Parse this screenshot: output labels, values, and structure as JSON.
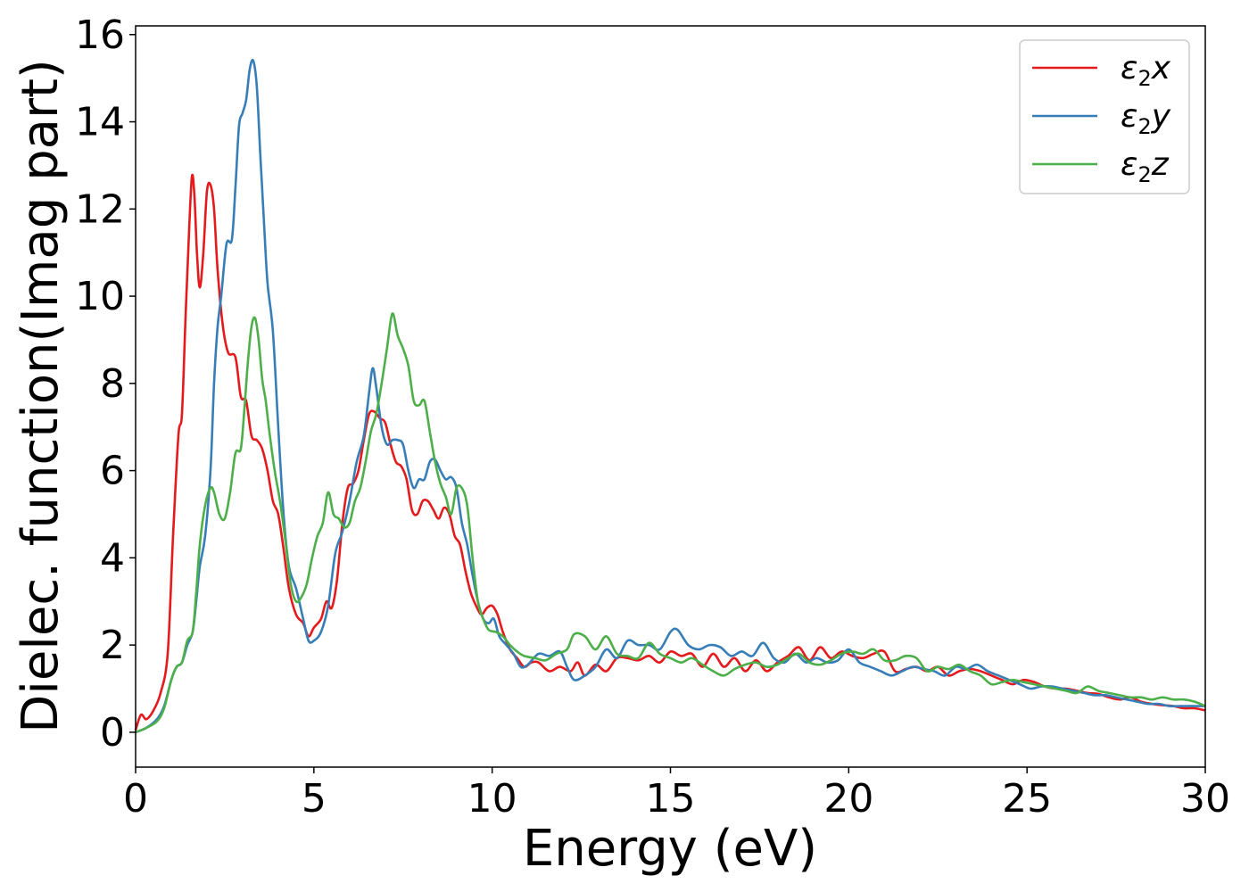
{
  "chart_data": {
    "type": "line",
    "title": "",
    "xlabel": "Energy (eV)",
    "ylabel": "Dielec. function(Imag part)",
    "xlim": [
      0,
      30
    ],
    "ylim": [
      -0.8,
      16.2
    ],
    "xticks": [
      0,
      5,
      10,
      15,
      20,
      25,
      30
    ],
    "yticks": [
      0,
      2,
      4,
      6,
      8,
      10,
      12,
      14,
      16
    ],
    "grid": false,
    "legend_position": "top-right",
    "series": [
      {
        "name_symbol": "ε",
        "name_sub": "2",
        "name_suffix": "x",
        "color": "#e41a1c",
        "x": [
          0,
          0.15,
          0.3,
          0.5,
          0.7,
          0.9,
          1.05,
          1.2,
          1.3,
          1.4,
          1.5,
          1.58,
          1.65,
          1.72,
          1.8,
          1.9,
          2.0,
          2.1,
          2.2,
          2.3,
          2.45,
          2.6,
          2.8,
          2.95,
          3.1,
          3.25,
          3.4,
          3.55,
          3.7,
          3.85,
          4.0,
          4.15,
          4.3,
          4.5,
          4.7,
          4.85,
          5.0,
          5.2,
          5.35,
          5.5,
          5.65,
          5.8,
          5.95,
          6.1,
          6.25,
          6.4,
          6.55,
          6.7,
          6.85,
          7.0,
          7.15,
          7.3,
          7.45,
          7.6,
          7.75,
          7.9,
          8.05,
          8.2,
          8.35,
          8.5,
          8.65,
          8.8,
          8.95,
          9.1,
          9.25,
          9.4,
          9.55,
          9.7,
          9.85,
          10.0,
          10.15,
          10.3,
          10.5,
          10.7,
          10.9,
          11.1,
          11.3,
          11.6,
          11.9,
          12.2,
          12.4,
          12.6,
          12.9,
          13.2,
          13.5,
          13.8,
          14.1,
          14.4,
          14.7,
          15.0,
          15.3,
          15.6,
          15.9,
          16.2,
          16.5,
          16.8,
          17.1,
          17.4,
          17.7,
          18.0,
          18.3,
          18.6,
          18.9,
          19.2,
          19.5,
          19.8,
          20.1,
          20.4,
          20.7,
          21.0,
          21.3,
          21.6,
          21.9,
          22.2,
          22.5,
          22.8,
          23.1,
          23.4,
          23.7,
          24.0,
          24.3,
          24.6,
          24.9,
          25.2,
          25.5,
          25.8,
          26.1,
          26.4,
          26.7,
          27.0,
          27.3,
          27.6,
          27.9,
          28.2,
          28.5,
          28.8,
          29.1,
          29.4,
          29.7,
          30.0
        ],
        "y": [
          0.05,
          0.4,
          0.3,
          0.5,
          0.9,
          1.8,
          4.5,
          6.8,
          7.3,
          9.5,
          11.5,
          12.75,
          12.3,
          11.0,
          10.2,
          11.0,
          12.4,
          12.55,
          12.0,
          10.6,
          9.3,
          8.7,
          8.6,
          7.7,
          7.6,
          6.8,
          6.7,
          6.5,
          6.0,
          5.3,
          5.0,
          4.2,
          3.3,
          2.7,
          2.5,
          2.2,
          2.4,
          2.6,
          3.0,
          2.85,
          3.5,
          4.8,
          5.6,
          5.7,
          6.0,
          6.7,
          7.3,
          7.35,
          7.2,
          7.1,
          6.6,
          6.2,
          6.1,
          5.8,
          5.1,
          5.0,
          5.3,
          5.3,
          5.1,
          4.9,
          5.15,
          5.0,
          4.5,
          4.3,
          3.7,
          3.2,
          2.9,
          2.7,
          2.85,
          2.9,
          2.7,
          2.3,
          1.9,
          1.7,
          1.5,
          1.6,
          1.6,
          1.4,
          1.5,
          1.4,
          1.6,
          1.3,
          1.55,
          1.4,
          1.7,
          1.7,
          1.65,
          1.75,
          1.6,
          1.85,
          1.75,
          1.8,
          1.5,
          1.8,
          1.5,
          1.7,
          1.4,
          1.65,
          1.4,
          1.6,
          1.75,
          1.95,
          1.65,
          1.95,
          1.7,
          1.85,
          1.75,
          1.7,
          1.8,
          1.85,
          1.4,
          1.45,
          1.5,
          1.4,
          1.5,
          1.3,
          1.4,
          1.45,
          1.4,
          1.3,
          1.2,
          1.1,
          1.2,
          1.15,
          1.05,
          1.0,
          1.0,
          0.95,
          0.9,
          0.88,
          0.8,
          0.75,
          0.8,
          0.7,
          0.65,
          0.62,
          0.6,
          0.55,
          0.55,
          0.5
        ]
      },
      {
        "name_symbol": "ε",
        "name_sub": "2",
        "name_suffix": "y",
        "color": "#377eb8",
        "x": [
          0,
          0.3,
          0.6,
          0.8,
          1.0,
          1.15,
          1.3,
          1.45,
          1.6,
          1.7,
          1.8,
          1.95,
          2.1,
          2.2,
          2.3,
          2.4,
          2.55,
          2.7,
          2.8,
          2.9,
          3.0,
          3.1,
          3.2,
          3.3,
          3.4,
          3.5,
          3.6,
          3.7,
          3.85,
          4.0,
          4.15,
          4.3,
          4.5,
          4.7,
          4.85,
          5.0,
          5.2,
          5.4,
          5.6,
          5.8,
          6.0,
          6.2,
          6.4,
          6.55,
          6.65,
          6.75,
          6.9,
          7.05,
          7.2,
          7.35,
          7.5,
          7.65,
          7.8,
          7.95,
          8.1,
          8.25,
          8.4,
          8.55,
          8.7,
          8.85,
          9.0,
          9.15,
          9.3,
          9.45,
          9.6,
          9.75,
          9.9,
          10.05,
          10.2,
          10.4,
          10.6,
          10.8,
          11.0,
          11.3,
          11.6,
          11.9,
          12.1,
          12.3,
          12.6,
          12.9,
          13.2,
          13.5,
          13.8,
          14.1,
          14.4,
          14.7,
          15.0,
          15.2,
          15.5,
          15.8,
          16.1,
          16.4,
          16.7,
          17.0,
          17.3,
          17.6,
          17.9,
          18.2,
          18.5,
          18.8,
          19.1,
          19.4,
          19.7,
          20.0,
          20.3,
          20.6,
          20.9,
          21.2,
          21.5,
          21.8,
          22.1,
          22.4,
          22.7,
          23.0,
          23.3,
          23.6,
          23.9,
          24.2,
          24.5,
          24.8,
          25.1,
          25.4,
          25.7,
          26.0,
          26.3,
          26.6,
          26.9,
          27.2,
          27.5,
          27.8,
          28.1,
          28.4,
          28.7,
          29.0,
          29.3,
          29.6,
          30.0
        ],
        "y": [
          0.0,
          0.1,
          0.3,
          0.6,
          1.2,
          1.5,
          1.6,
          2.0,
          2.3,
          3.0,
          3.8,
          4.5,
          6.0,
          8.0,
          9.3,
          10.0,
          11.2,
          11.3,
          12.5,
          13.9,
          14.2,
          14.5,
          15.2,
          15.4,
          14.8,
          13.2,
          11.7,
          10.3,
          9.2,
          7.0,
          5.0,
          3.8,
          3.3,
          2.6,
          2.1,
          2.1,
          2.3,
          2.9,
          4.1,
          4.6,
          5.3,
          6.2,
          6.8,
          7.8,
          8.35,
          7.9,
          7.0,
          6.6,
          6.7,
          6.7,
          6.6,
          6.0,
          5.6,
          5.8,
          5.8,
          6.2,
          6.25,
          6.0,
          5.8,
          5.85,
          5.6,
          4.8,
          4.3,
          3.6,
          3.0,
          2.6,
          2.5,
          2.6,
          2.2,
          2.0,
          1.8,
          1.5,
          1.55,
          1.8,
          1.75,
          1.85,
          1.5,
          1.2,
          1.3,
          1.5,
          1.9,
          1.7,
          2.1,
          2.0,
          2.0,
          1.9,
          2.3,
          2.35,
          2.0,
          1.9,
          2.0,
          1.95,
          1.75,
          1.85,
          1.75,
          2.05,
          1.7,
          1.6,
          1.8,
          1.6,
          1.7,
          1.6,
          1.65,
          1.9,
          1.6,
          1.5,
          1.4,
          1.3,
          1.4,
          1.5,
          1.45,
          1.4,
          1.3,
          1.5,
          1.45,
          1.55,
          1.4,
          1.3,
          1.2,
          1.1,
          1.0,
          1.05,
          1.05,
          1.0,
          0.95,
          0.9,
          0.85,
          0.85,
          0.8,
          0.75,
          0.7,
          0.65,
          0.65,
          0.6,
          0.6,
          0.6,
          0.6
        ]
      },
      {
        "name_symbol": "ε",
        "name_sub": "2",
        "name_suffix": "z",
        "color": "#4daf4a",
        "x": [
          0,
          0.3,
          0.6,
          0.8,
          1.0,
          1.15,
          1.3,
          1.45,
          1.6,
          1.7,
          1.8,
          1.95,
          2.1,
          2.2,
          2.35,
          2.5,
          2.65,
          2.8,
          2.95,
          3.05,
          3.15,
          3.25,
          3.35,
          3.45,
          3.55,
          3.65,
          3.75,
          3.9,
          4.05,
          4.2,
          4.35,
          4.5,
          4.65,
          4.8,
          4.95,
          5.1,
          5.25,
          5.4,
          5.55,
          5.7,
          5.85,
          6.0,
          6.15,
          6.3,
          6.45,
          6.6,
          6.75,
          6.9,
          7.05,
          7.2,
          7.35,
          7.5,
          7.65,
          7.8,
          7.95,
          8.1,
          8.25,
          8.4,
          8.55,
          8.7,
          8.85,
          9.0,
          9.15,
          9.3,
          9.45,
          9.6,
          9.75,
          9.9,
          10.1,
          10.3,
          10.5,
          10.7,
          10.9,
          11.2,
          11.5,
          11.8,
          12.1,
          12.3,
          12.6,
          12.9,
          13.2,
          13.5,
          13.8,
          14.1,
          14.4,
          14.7,
          15.0,
          15.3,
          15.6,
          15.9,
          16.2,
          16.5,
          16.8,
          17.1,
          17.4,
          17.7,
          18.0,
          18.3,
          18.6,
          18.9,
          19.2,
          19.5,
          19.8,
          20.1,
          20.4,
          20.7,
          21.0,
          21.3,
          21.6,
          21.9,
          22.2,
          22.5,
          22.8,
          23.1,
          23.4,
          23.7,
          24.0,
          24.3,
          24.6,
          24.9,
          25.2,
          25.5,
          25.8,
          26.1,
          26.4,
          26.7,
          27.0,
          27.3,
          27.6,
          27.9,
          28.2,
          28.5,
          28.8,
          29.1,
          29.4,
          29.7,
          30.0
        ],
        "y": [
          0.0,
          0.1,
          0.25,
          0.55,
          1.2,
          1.5,
          1.6,
          2.1,
          2.3,
          3.2,
          4.3,
          5.2,
          5.6,
          5.5,
          5.0,
          4.9,
          5.5,
          6.4,
          6.5,
          7.4,
          8.5,
          9.3,
          9.5,
          9.0,
          8.1,
          7.6,
          6.9,
          6.0,
          5.3,
          4.4,
          3.4,
          3.0,
          3.1,
          3.4,
          4.0,
          4.5,
          4.8,
          5.5,
          5.0,
          4.9,
          4.7,
          4.8,
          5.3,
          5.6,
          6.2,
          6.9,
          7.3,
          8.0,
          8.8,
          9.6,
          9.1,
          8.8,
          8.4,
          7.6,
          7.5,
          7.6,
          6.9,
          6.2,
          5.7,
          5.4,
          5.0,
          5.6,
          5.6,
          5.2,
          4.0,
          3.0,
          2.6,
          2.35,
          2.3,
          2.2,
          2.0,
          1.85,
          1.75,
          1.7,
          1.65,
          1.8,
          1.9,
          2.25,
          2.2,
          1.9,
          2.2,
          1.8,
          1.75,
          1.7,
          2.05,
          1.8,
          1.7,
          1.6,
          1.7,
          1.55,
          1.4,
          1.3,
          1.45,
          1.55,
          1.6,
          1.5,
          1.55,
          1.7,
          1.8,
          1.6,
          1.55,
          1.65,
          1.8,
          1.85,
          1.8,
          1.9,
          1.65,
          1.65,
          1.75,
          1.7,
          1.4,
          1.5,
          1.45,
          1.55,
          1.4,
          1.3,
          1.1,
          1.15,
          1.2,
          1.15,
          1.1,
          1.05,
          1.0,
          0.95,
          0.9,
          1.05,
          0.95,
          0.9,
          0.85,
          0.8,
          0.8,
          0.75,
          0.8,
          0.75,
          0.75,
          0.7,
          0.6
        ]
      }
    ]
  }
}
